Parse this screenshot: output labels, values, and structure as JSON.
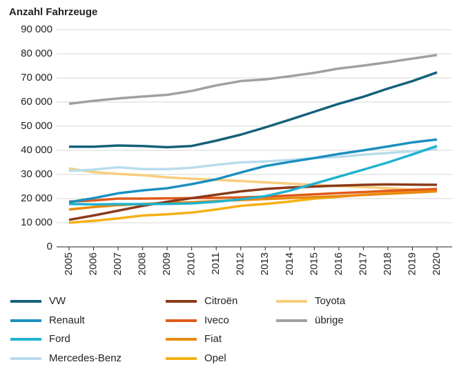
{
  "chart_data": {
    "type": "line",
    "y_label": "Anzahl Fahrzeuge",
    "x": [
      2005,
      2006,
      2007,
      2008,
      2009,
      2010,
      2011,
      2012,
      2013,
      2014,
      2015,
      2016,
      2017,
      2018,
      2019,
      2020
    ],
    "ylim": [
      0,
      90000
    ],
    "yticks": [
      0,
      {
        "value": 10000,
        "label": "10 000"
      },
      {
        "value": 20000,
        "label": "20 000"
      },
      {
        "value": 30000,
        "label": "30 000"
      },
      {
        "value": 40000,
        "label": "40 000"
      },
      {
        "value": 50000,
        "label": "50 000"
      },
      {
        "value": 60000,
        "label": "60 000"
      },
      {
        "value": 70000,
        "label": "70 000"
      },
      {
        "value": 80000,
        "label": "80 000"
      },
      {
        "value": 90000,
        "label": "90 000"
      }
    ],
    "grid": true,
    "series": [
      {
        "name": "VW",
        "color": "#15607a",
        "values": [
          41500,
          41500,
          42000,
          41800,
          41300,
          41800,
          44000,
          46500,
          49500,
          52700,
          56000,
          59300,
          62200,
          65600,
          68700,
          72300
        ]
      },
      {
        "name": "Renault",
        "color": "#1a8fbf",
        "values": [
          18500,
          20200,
          22200,
          23400,
          24300,
          26000,
          28000,
          30800,
          33500,
          35200,
          36800,
          38500,
          40000,
          41600,
          43300,
          44500
        ]
      },
      {
        "name": "Ford",
        "color": "#1eb3cf",
        "values": [
          17800,
          17600,
          17700,
          17700,
          17800,
          18000,
          18700,
          19700,
          21000,
          23300,
          26200,
          29100,
          32000,
          35000,
          38300,
          41800
        ]
      },
      {
        "name": "Mercedes-Benz",
        "color": "#b8dcec",
        "values": [
          31500,
          32000,
          33000,
          32200,
          32200,
          32800,
          34000,
          35000,
          35400,
          36000,
          36800,
          37300,
          38200,
          38900,
          39600,
          40500
        ]
      },
      {
        "name": "Citroën",
        "color": "#8b3a1a",
        "values": [
          11200,
          13000,
          15000,
          17000,
          18700,
          20200,
          21600,
          23000,
          24000,
          24600,
          25000,
          25400,
          25700,
          25900,
          25800,
          25700
        ]
      },
      {
        "name": "Iveco",
        "color": "#e05a1a",
        "values": [
          18800,
          19200,
          20000,
          20000,
          20100,
          20200,
          20300,
          20500,
          20800,
          21300,
          21800,
          22300,
          22700,
          23200,
          23600,
          24000
        ]
      },
      {
        "name": "Fiat",
        "color": "#e8890f",
        "values": [
          15500,
          16500,
          17300,
          17800,
          18200,
          18500,
          19000,
          19400,
          19800,
          20200,
          20600,
          21000,
          21500,
          22000,
          22500,
          23000
        ]
      },
      {
        "name": "Opel",
        "color": "#f5b014",
        "values": [
          10000,
          10800,
          11800,
          13000,
          13500,
          14200,
          15500,
          17000,
          17800,
          18800,
          20000,
          20800,
          21600,
          22200,
          23000,
          23500
        ]
      },
      {
        "name": "Toyota",
        "color": "#f8cd7c",
        "values": [
          32500,
          31000,
          30200,
          29700,
          28800,
          28200,
          27800,
          27300,
          26700,
          26200,
          25700,
          25200,
          24800,
          24300,
          23800,
          23500
        ]
      },
      {
        "name": "übrige",
        "color": "#a0a0a0",
        "values": [
          59300,
          60500,
          61500,
          62300,
          63000,
          64600,
          66900,
          68700,
          69400,
          70700,
          72100,
          73900,
          75100,
          76500,
          78000,
          79500
        ]
      }
    ]
  }
}
